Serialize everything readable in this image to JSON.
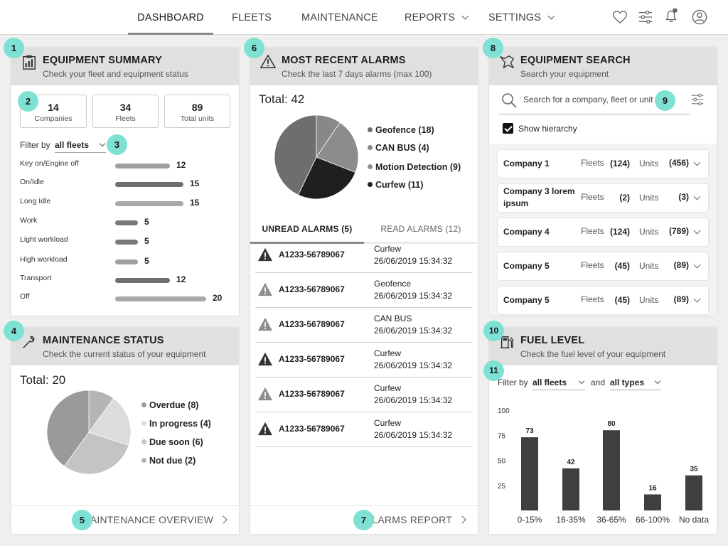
{
  "nav": {
    "items": [
      {
        "label": "DASHBOARD",
        "active": true,
        "dropdown": false
      },
      {
        "label": "FLEETS",
        "active": false,
        "dropdown": false
      },
      {
        "label": "MAINTENANCE",
        "active": false,
        "dropdown": false
      },
      {
        "label": "REPORTS",
        "active": false,
        "dropdown": true
      },
      {
        "label": "SETTINGS",
        "active": false,
        "dropdown": true
      }
    ],
    "icons": [
      "heart-icon",
      "sliders-icon",
      "bell-icon",
      "user-icon"
    ]
  },
  "badges": [
    "1",
    "2",
    "3",
    "4",
    "5",
    "6",
    "7",
    "8",
    "9",
    "10",
    "11"
  ],
  "equipment_summary": {
    "title": "EQUIPMENT SUMMARY",
    "subtitle": "Check your fleet and equipment status",
    "stats": [
      {
        "value": "14",
        "label": "Companies"
      },
      {
        "value": "34",
        "label": "Fleets"
      },
      {
        "value": "89",
        "label": "Total units"
      }
    ],
    "filter_label": "Filter by",
    "filter_value": "all fleets",
    "rows": [
      {
        "label": "Key on/Engine off",
        "value": 12,
        "color": "#a0a0a0"
      },
      {
        "label": "On/Idle",
        "value": 15,
        "color": "#6f6f6f"
      },
      {
        "label": "Long Idle",
        "value": 15,
        "color": "#a9a9a9"
      },
      {
        "label": "Work",
        "value": 5,
        "color": "#7a7a7a"
      },
      {
        "label": "Light workload",
        "value": 5,
        "color": "#7a7a7a"
      },
      {
        "label": "High workload",
        "value": 5,
        "color": "#a0a0a0"
      },
      {
        "label": "Transport",
        "value": 12,
        "color": "#6f6f6f"
      },
      {
        "label": "Off",
        "value": 20,
        "color": "#a9a9a9"
      }
    ]
  },
  "maintenance": {
    "title": "MAINTENANCE STATUS",
    "subtitle": "Check the current status of your equipment",
    "total": "Total: 20",
    "legend": [
      {
        "label": "Overdue (8)",
        "value": 8,
        "color": "#9a9a9a"
      },
      {
        "label": "In progress (4)",
        "value": 4,
        "color": "#dcdcdc"
      },
      {
        "label": "Due soon (6)",
        "value": 6,
        "color": "#c4c4c4"
      },
      {
        "label": "Not due (2)",
        "value": 2,
        "color": "#b4b4b4"
      }
    ],
    "footer_link": "MAINTENANCE OVERVIEW"
  },
  "alarms": {
    "title": "MOST RECENT ALARMS",
    "subtitle": "Check the last 7 days alarms (max 100)",
    "total": "Total: 42",
    "legend": [
      {
        "label": "Geofence (18)",
        "value": 18,
        "color": "#6e6e6e"
      },
      {
        "label": "CAN BUS (4)",
        "value": 4,
        "color": "#888888"
      },
      {
        "label": "Motion Detection (9)",
        "value": 9,
        "color": "#8c8c8c"
      },
      {
        "label": "Curfew (11)",
        "value": 11,
        "color": "#1f1f1f"
      }
    ],
    "tabs": [
      {
        "label": "UNREAD ALARMS (5)",
        "active": true
      },
      {
        "label": "READ ALARMS (12)",
        "active": false
      }
    ],
    "rows": [
      {
        "id": "A1233-56789067",
        "type": "Curfew",
        "time": "26/06/2019 15:34:32",
        "severity": "dark"
      },
      {
        "id": "A1233-56789067",
        "type": "Geofence",
        "time": "26/06/2019 15:34:32",
        "severity": "light"
      },
      {
        "id": "A1233-56789067",
        "type": "CAN BUS",
        "time": "26/06/2019 15:34:32",
        "severity": "light"
      },
      {
        "id": "A1233-56789067",
        "type": "Curfew",
        "time": "26/06/2019 15:34:32",
        "severity": "dark"
      },
      {
        "id": "A1233-56789067",
        "type": "Curfew",
        "time": "26/06/2019 15:34:32",
        "severity": "light"
      },
      {
        "id": "A1233-56789067",
        "type": "Curfew",
        "time": "26/06/2019 15:34:32",
        "severity": "dark"
      }
    ],
    "footer_link": "ALARMS REPORT"
  },
  "search": {
    "title": "EQUIPMENT SEARCH",
    "subtitle": "Search your equipment",
    "placeholder": "Search for a company, fleet or unit",
    "show_hierarchy": "Show hierarchy",
    "fleets_label": "Fleets",
    "units_label": "Units",
    "companies": [
      {
        "name": "Company 1",
        "fleets": "(124)",
        "units": "(456)"
      },
      {
        "name": "Company 3 lorem ipsum",
        "fleets": "(2)",
        "units": "(3)"
      },
      {
        "name": "Company 4",
        "fleets": "(124)",
        "units": "(789)"
      },
      {
        "name": "Company 5",
        "fleets": "(45)",
        "units": "(89)"
      },
      {
        "name": "Company 5",
        "fleets": "(45)",
        "units": "(89)"
      }
    ]
  },
  "fuel": {
    "title": "FUEL LEVEL",
    "subtitle": "Check the fuel level of your equipment",
    "filter_label": "Filter by",
    "filter_value": "all fleets",
    "and_label": "and",
    "type_value": "all types"
  },
  "chart_data": {
    "type": "bar",
    "categories": [
      "0-15%",
      "16-35%",
      "36-65%",
      "66-100%",
      "No data"
    ],
    "values": [
      73,
      42,
      80,
      16,
      35
    ],
    "yticks": [
      100,
      75,
      50,
      25
    ],
    "ylim": [
      0,
      100
    ],
    "bar_color": "#3f3f3f",
    "title": "",
    "xlabel": "",
    "ylabel": ""
  }
}
